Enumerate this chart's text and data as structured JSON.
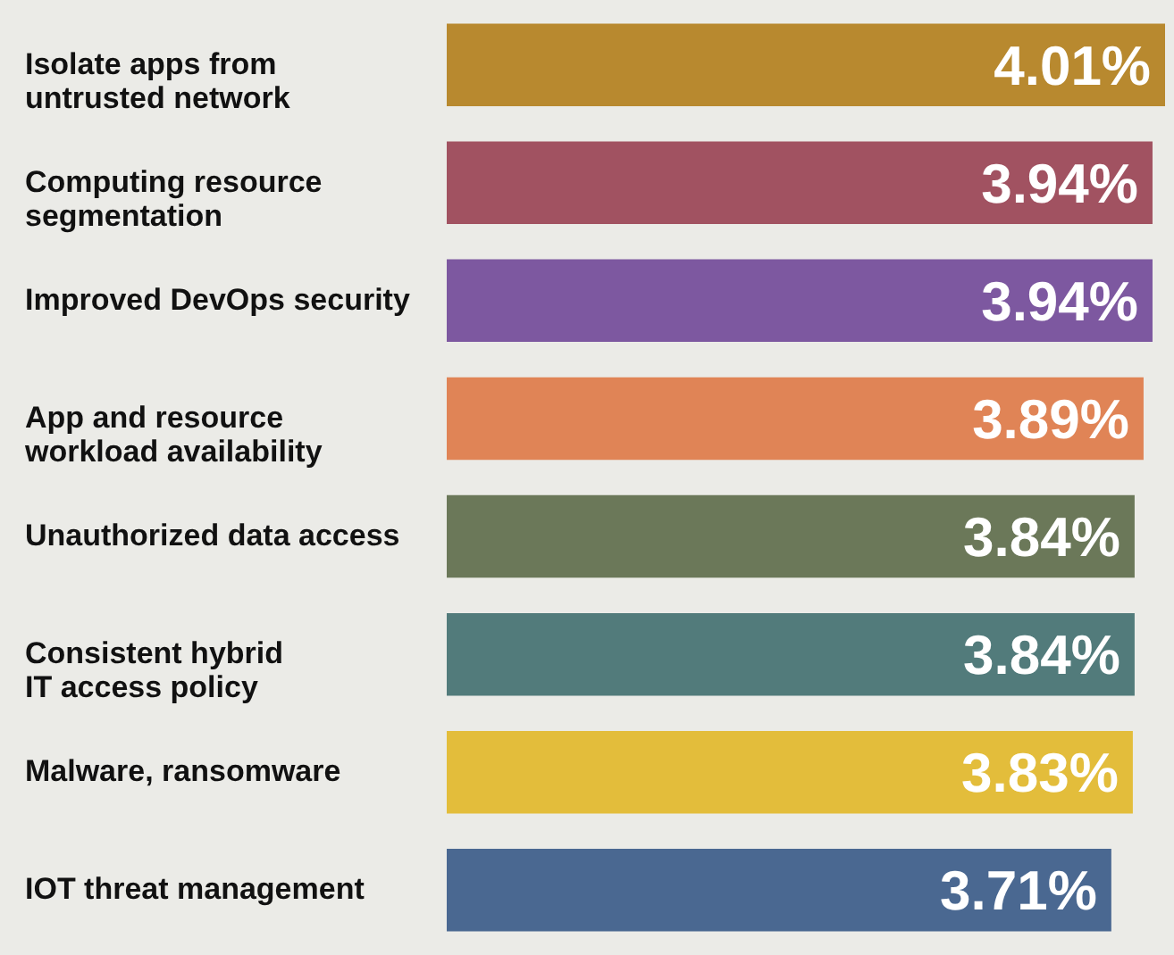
{
  "chart_data": {
    "type": "bar",
    "orientation": "horizontal",
    "categories": [
      "Isolate apps from\nuntrusted network",
      "Computing resource\nsegmentation",
      "Improved DevOps security",
      "App and resource\nworkload availability",
      "Unauthorized data access",
      "Consistent hybrid\nIT access policy",
      "Malware, ransomware",
      "IOT threat management"
    ],
    "values": [
      4.01,
      3.94,
      3.94,
      3.89,
      3.84,
      3.84,
      3.83,
      3.71
    ],
    "value_labels": [
      "4.01%",
      "3.94%",
      "3.94%",
      "3.89%",
      "3.84%",
      "3.84%",
      "3.83%",
      "3.71%"
    ],
    "colors": [
      "#b8892f",
      "#a15261",
      "#7d58a0",
      "#e08456",
      "#6b7859",
      "#527b7b",
      "#e3bd3b",
      "#4a6891"
    ]
  }
}
